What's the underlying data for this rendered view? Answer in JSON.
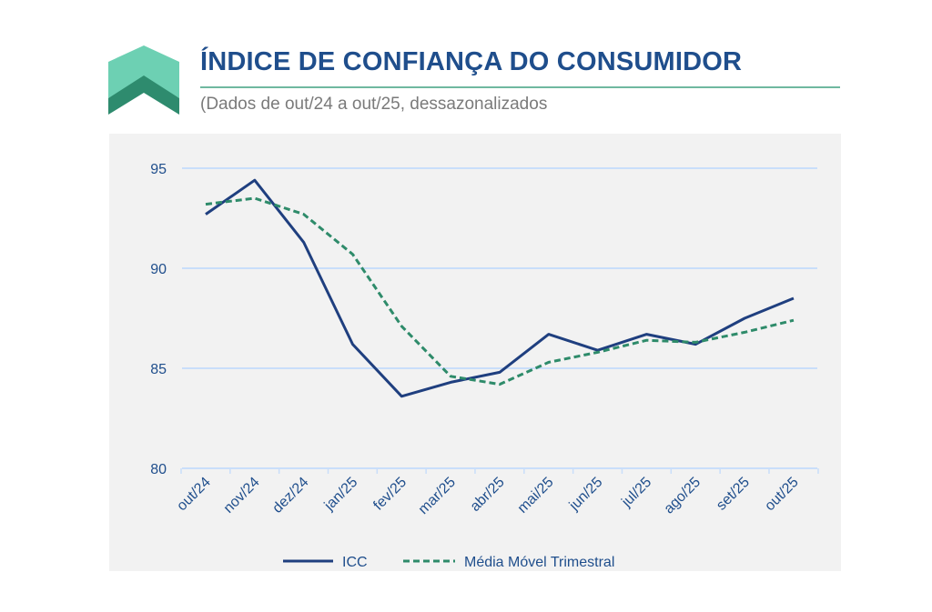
{
  "header": {
    "title": "ÍNDICE DE CONFIANÇA DO CONSUMIDOR",
    "subtitle": "(Dados de out/24 a out/25, dessazonalizados"
  },
  "colors": {
    "icc": "#1f3f7f",
    "mm": "#2e8b6a",
    "grid": "#c9defa",
    "title": "#1f4e8c",
    "logo_light": "#6dd0b3",
    "logo_dark": "#2e8b6e"
  },
  "chart_data": {
    "type": "line",
    "title": "ÍNDICE DE CONFIANÇA DO CONSUMIDOR",
    "categories": [
      "out/24",
      "nov/24",
      "dez/24",
      "jan/25",
      "fev/25",
      "mar/25",
      "abr/25",
      "mai/25",
      "jun/25",
      "jul/25",
      "ago/25",
      "set/25",
      "out/25"
    ],
    "series": [
      {
        "name": "ICC",
        "style": "solid",
        "values": [
          92.7,
          94.4,
          91.3,
          86.2,
          83.6,
          84.3,
          84.8,
          86.7,
          85.9,
          86.7,
          86.2,
          87.5,
          88.5
        ]
      },
      {
        "name": "Média Móvel Trimestral",
        "style": "dashed",
        "values": [
          93.2,
          93.5,
          92.7,
          90.7,
          87.1,
          84.6,
          84.2,
          85.3,
          85.8,
          86.4,
          86.3,
          86.8,
          87.4
        ]
      }
    ],
    "yticks": [
      "80",
      "85",
      "90",
      "95"
    ],
    "ylim": [
      80,
      95
    ],
    "grid": true,
    "legend": "bottom",
    "xlabel": "",
    "ylabel": ""
  }
}
